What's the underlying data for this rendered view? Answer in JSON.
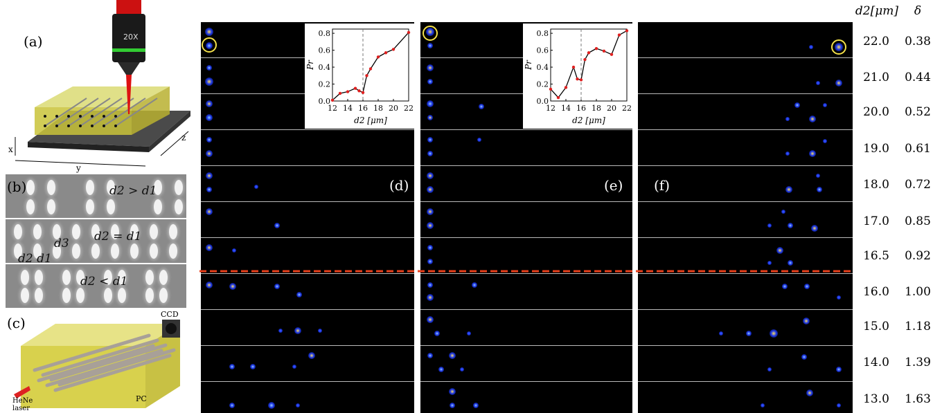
{
  "panel_labels": {
    "a": "(a)",
    "b": "(b)",
    "c": "(c)",
    "d": "(d)",
    "e": "(e)",
    "f": "(f)"
  },
  "schematic_a": {
    "objective_text": "20X",
    "axis_x": "x",
    "axis_y": "y",
    "axis_z": "z"
  },
  "sem_b": {
    "row1_eq": "d2 > d1",
    "row2_eq": "d2 = d1",
    "row2_d3": "d3",
    "row2_d2d1": "d2 d1",
    "row3_eq": "d2 < d1"
  },
  "setup_c": {
    "ccd": "CCD",
    "laser": "HeNe laser",
    "laser_l1": "HeNe",
    "laser_l2": "laser",
    "pc": "PC"
  },
  "right_table": {
    "header_d2": "d2[μm]",
    "header_delta": "δ",
    "rows": [
      {
        "d2": "22.0",
        "delta": "0.38"
      },
      {
        "d2": "21.0",
        "delta": "0.44"
      },
      {
        "d2": "20.0",
        "delta": "0.52"
      },
      {
        "d2": "19.0",
        "delta": "0.61"
      },
      {
        "d2": "18.0",
        "delta": "0.72"
      },
      {
        "d2": "17.0",
        "delta": "0.85"
      },
      {
        "d2": "16.5",
        "delta": "0.92"
      },
      {
        "d2": "16.0",
        "delta": "1.00"
      },
      {
        "d2": "15.0",
        "delta": "1.18"
      },
      {
        "d2": "14.0",
        "delta": "1.39"
      },
      {
        "d2": "13.0",
        "delta": "1.63"
      }
    ]
  },
  "colors": {
    "divider": "#e8401c",
    "circle": "#f4e14a",
    "plot_line": "#000000",
    "plot_marker": "#e02020"
  },
  "chart_data": [
    {
      "type": "line",
      "panel": "d",
      "x": [
        12,
        13,
        14,
        15,
        15.5,
        16,
        16.5,
        17,
        18,
        19,
        20,
        22
      ],
      "y": [
        0.01,
        0.09,
        0.11,
        0.15,
        0.12,
        0.1,
        0.3,
        0.38,
        0.52,
        0.57,
        0.61,
        0.81
      ],
      "xlim": [
        12,
        22
      ],
      "ylim": [
        0,
        0.85
      ],
      "xticks": [
        "12",
        "14",
        "16",
        "18",
        "20",
        "22"
      ],
      "yticks": [
        "0.0",
        "0.2",
        "0.4",
        "0.6",
        "0.8"
      ],
      "xlabel": "d2 [μm]",
      "ylabel": "Pr",
      "vline": 16
    },
    {
      "type": "line",
      "panel": "e",
      "x": [
        12,
        13,
        14,
        15,
        15.5,
        16,
        16.5,
        17,
        18,
        19,
        20,
        21,
        22
      ],
      "y": [
        0.14,
        0.04,
        0.16,
        0.4,
        0.26,
        0.25,
        0.49,
        0.57,
        0.62,
        0.59,
        0.55,
        0.78,
        0.83
      ],
      "xlim": [
        12,
        22
      ],
      "ylim": [
        0,
        0.85
      ],
      "xticks": [
        "12",
        "14",
        "16",
        "18",
        "20",
        "22"
      ],
      "yticks": [
        "0.0",
        "0.2",
        "0.4",
        "0.6",
        "0.8"
      ],
      "xlabel": "d2 [μm]",
      "ylabel": "Pr",
      "vline": 16
    }
  ]
}
